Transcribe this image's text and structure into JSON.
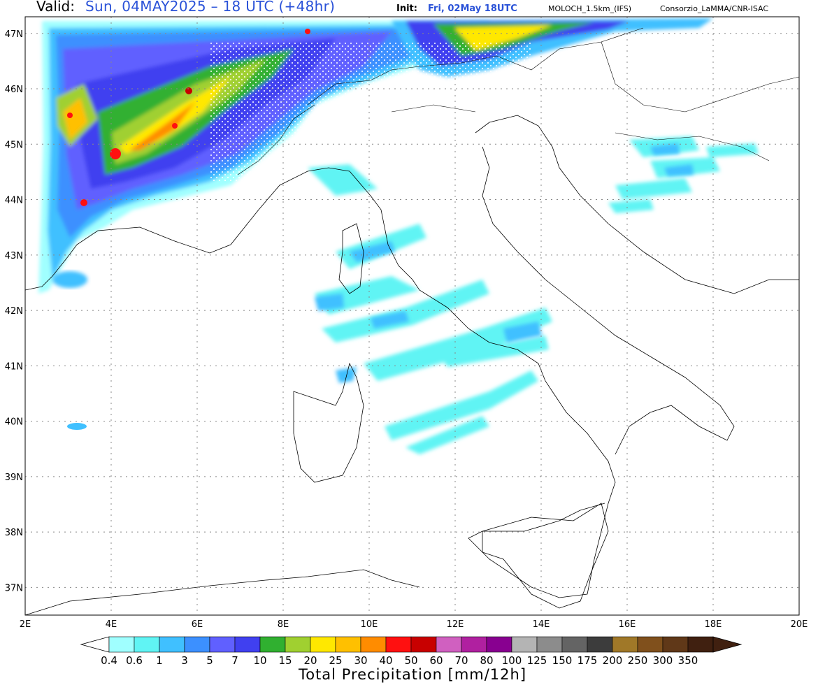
{
  "header": {
    "valid_label": "Valid:",
    "valid_value": "Sun, 04MAY2025 – 18 UTC (+48hr)",
    "init_label": "Init:",
    "init_value": "Fri, 02May 18UTC",
    "model": "MOLOCH_1.5km_(IFS)",
    "consortium": "Consorzio_LaMMA/CNR-ISAC"
  },
  "map": {
    "variable": "Total Precipitation",
    "lon_range": [
      2,
      20
    ],
    "lat_range": [
      36.5,
      47.3
    ],
    "lon_ticks": [
      "2E",
      "4E",
      "6E",
      "8E",
      "10E",
      "12E",
      "14E",
      "16E",
      "18E",
      "20E"
    ],
    "lat_ticks": [
      "37N",
      "38N",
      "39N",
      "40N",
      "41N",
      "42N",
      "43N",
      "44N",
      "45N",
      "46N",
      "47N"
    ],
    "grid": "dotted",
    "coastline_color": "#000000"
  },
  "colorbar": {
    "title": "Total Precipitation [mm/12h]",
    "thresholds": [
      "0.4",
      "0.6",
      "1",
      "3",
      "5",
      "7",
      "10",
      "15",
      "20",
      "25",
      "30",
      "40",
      "50",
      "60",
      "70",
      "80",
      "100",
      "125",
      "150",
      "175",
      "200",
      "250",
      "300",
      "350"
    ],
    "colors": [
      "#a0ffff",
      "#60f4f4",
      "#40c0ff",
      "#3c90ff",
      "#6060ff",
      "#4040f0",
      "#30b030",
      "#a0d030",
      "#ffe800",
      "#ffc000",
      "#ff8c00",
      "#ff1010",
      "#c80000",
      "#d060c0",
      "#b020a0",
      "#880090",
      "#b4b4b4",
      "#8c8c8c",
      "#646464",
      "#3c3c3c",
      "#a07828",
      "#80501c",
      "#603818",
      "#402010"
    ],
    "open_ends": "both"
  }
}
